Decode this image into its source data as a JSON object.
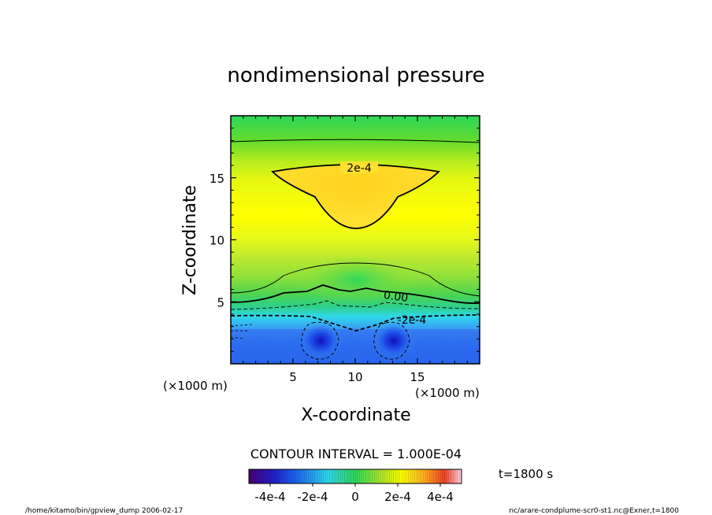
{
  "chart_data": {
    "type": "heatmap",
    "title": "nondimensional pressure",
    "xlabel": "X-coordinate",
    "ylabel": "Z-coordinate",
    "x_unit": "(×1000 m)",
    "y_unit": "(×1000 m)",
    "xlim": [
      0,
      20
    ],
    "ylim": [
      0,
      20
    ],
    "xticks": [
      5,
      10,
      15
    ],
    "yticks": [
      5,
      10,
      15
    ],
    "contour_labels": [
      "2e-4",
      "0.00",
      "-2e-4"
    ],
    "contour_interval_text": "CONTOUR INTERVAL = 1.000E-04",
    "colorbar": {
      "range": [
        -0.0005,
        0.0005
      ],
      "tick_values": [
        -0.0004,
        -0.0002,
        0,
        0.0002,
        0.0004
      ],
      "tick_labels": [
        "-4e-4",
        "-2e-4",
        "0",
        "2e-4",
        "4e-4"
      ]
    },
    "colors": {
      "deep_negative": "#1e4fe8",
      "negative": "#3f8ff5",
      "cyan": "#2fd8ea",
      "zero": "#2ed65a",
      "light_green": "#8fe03a",
      "yellow": "#ffff00",
      "gold": "#ffd21e"
    }
  },
  "time_label": "t=1800 s",
  "footer_left": "/home/kitamo/bin/gpview_dump  2006-02-17",
  "footer_right": "nc/arare-condplume-scr0-st1.nc@Exner,t=1800"
}
